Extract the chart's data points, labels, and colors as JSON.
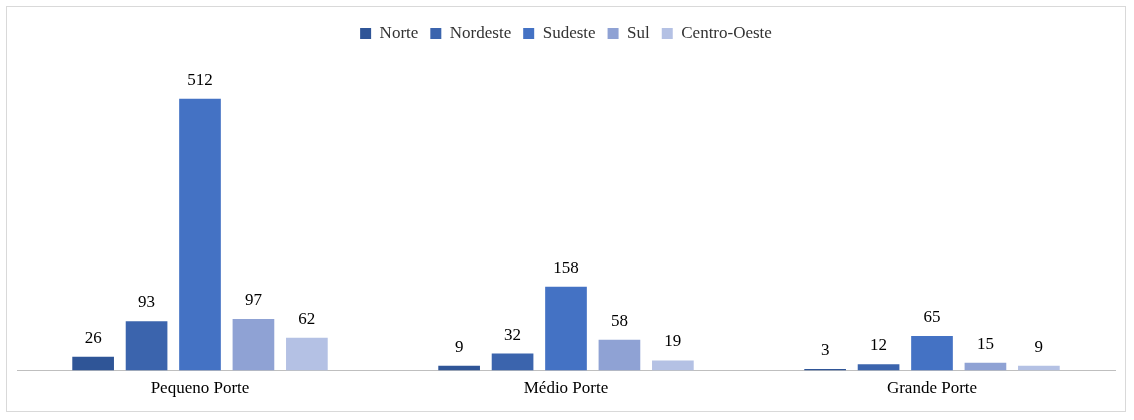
{
  "chart_data": {
    "type": "bar",
    "categories": [
      "Pequeno Porte",
      "Médio Porte",
      "Grande Porte"
    ],
    "series": [
      {
        "name": "Norte",
        "color": "#2f5597",
        "values": [
          26,
          9,
          3
        ]
      },
      {
        "name": "Nordeste",
        "color": "#3b64ad",
        "values": [
          93,
          32,
          12
        ]
      },
      {
        "name": "Sudeste",
        "color": "#4472c4",
        "values": [
          512,
          158,
          65
        ]
      },
      {
        "name": "Sul",
        "color": "#8fa2d4",
        "values": [
          97,
          58,
          15
        ]
      },
      {
        "name": "Centro-Oeste",
        "color": "#b4c1e4",
        "values": [
          62,
          19,
          9
        ]
      }
    ],
    "data_labels": true,
    "legend": "top",
    "grid": false
  }
}
